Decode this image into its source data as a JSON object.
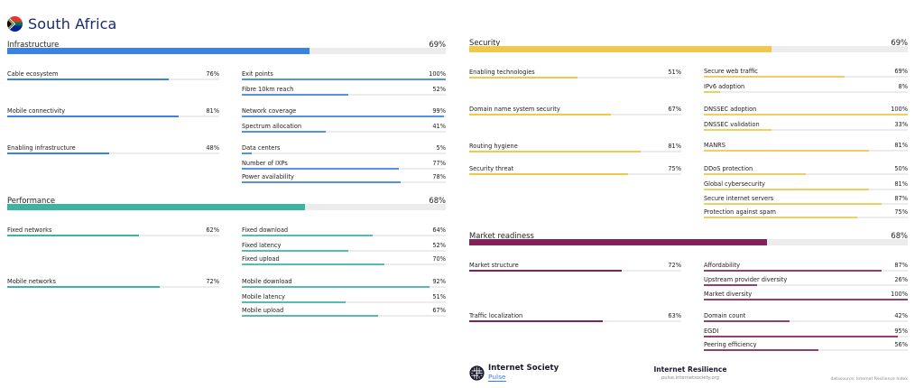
{
  "header": {
    "country": "South Africa",
    "flag_icon": "south-africa-flag-icon"
  },
  "colors": {
    "infrastructure": "#3a82e4",
    "performance": "#3fb3a0",
    "security": "#f0c94b",
    "market_readiness": "#85215a",
    "track": "#ececec"
  },
  "categories": {
    "infrastructure": {
      "label": "Infrastructure",
      "value": "69%",
      "score": 69,
      "groups": [
        {
          "label": "Cable ecosystem",
          "value": "76%",
          "score": 76,
          "indicators": [
            {
              "label": "Exit points",
              "value": "100%",
              "score": 100
            },
            {
              "label": "Fibre 10km reach",
              "value": "52%",
              "score": 52
            }
          ]
        },
        {
          "label": "Mobile connectivity",
          "value": "81%",
          "score": 81,
          "indicators": [
            {
              "label": "Network coverage",
              "value": "99%",
              "score": 99
            },
            {
              "label": "Spectrum allocation",
              "value": "41%",
              "score": 41
            }
          ]
        },
        {
          "label": "Enabling infrastructure",
          "value": "48%",
          "score": 48,
          "indicators": [
            {
              "label": "Data centers",
              "value": "5%",
              "score": 5
            },
            {
              "label": "Number of IXPs",
              "value": "77%",
              "score": 77
            },
            {
              "label": "Power availability",
              "value": "78%",
              "score": 78
            }
          ]
        }
      ]
    },
    "performance": {
      "label": "Performance",
      "value": "68%",
      "score": 68,
      "groups": [
        {
          "label": "Fixed networks",
          "value": "62%",
          "score": 62,
          "indicators": [
            {
              "label": "Fixed download",
              "value": "64%",
              "score": 64
            },
            {
              "label": "Fixed latency",
              "value": "52%",
              "score": 52
            },
            {
              "label": "Fixed upload",
              "value": "70%",
              "score": 70
            }
          ]
        },
        {
          "label": "Mobile networks",
          "value": "72%",
          "score": 72,
          "indicators": [
            {
              "label": "Mobile download",
              "value": "92%",
              "score": 92
            },
            {
              "label": "Mobile latency",
              "value": "51%",
              "score": 51
            },
            {
              "label": "Mobile upload",
              "value": "67%",
              "score": 67
            }
          ]
        }
      ]
    },
    "security": {
      "label": "Security",
      "value": "69%",
      "score": 69,
      "groups": [
        {
          "label": "Enabling technologies",
          "value": "51%",
          "score": 51,
          "indicators": [
            {
              "label": "Secure web traffic",
              "value": "69%",
              "score": 69
            },
            {
              "label": "IPv6 adoption",
              "value": "8%",
              "score": 8
            }
          ]
        },
        {
          "label": "Domain name system security",
          "value": "67%",
          "score": 67,
          "indicators": [
            {
              "label": "DNSSEC adoption",
              "value": "100%",
              "score": 100
            },
            {
              "label": "DNSSEC validation",
              "value": "33%",
              "score": 33
            }
          ]
        },
        {
          "label": "Routing hygiene",
          "value": "81%",
          "score": 81,
          "indicators": [
            {
              "label": "MANRS",
              "value": "81%",
              "score": 81
            }
          ]
        },
        {
          "label": "Security threat",
          "value": "75%",
          "score": 75,
          "indicators": [
            {
              "label": "DDoS protection",
              "value": "50%",
              "score": 50
            },
            {
              "label": "Global cybersecurity",
              "value": "81%",
              "score": 81
            },
            {
              "label": "Secure internet servers",
              "value": "87%",
              "score": 87
            },
            {
              "label": "Protection against spam",
              "value": "75%",
              "score": 75
            }
          ]
        }
      ]
    },
    "market_readiness": {
      "label": "Market readiness",
      "value": "68%",
      "score": 68,
      "groups": [
        {
          "label": "Market structure",
          "value": "72%",
          "score": 72,
          "indicators": [
            {
              "label": "Affordability",
              "value": "87%",
              "score": 87
            },
            {
              "label": "Upstream provider diversity",
              "value": "26%",
              "score": 26
            },
            {
              "label": "Market diversity",
              "value": "100%",
              "score": 100
            }
          ]
        },
        {
          "label": "Traffic localization",
          "value": "63%",
          "score": 63,
          "indicators": [
            {
              "label": "Domain count",
              "value": "42%",
              "score": 42
            },
            {
              "label": "EGDI",
              "value": "95%",
              "score": 95
            },
            {
              "label": "Peering efficiency",
              "value": "56%",
              "score": 56
            }
          ]
        }
      ]
    }
  },
  "footer": {
    "org_name": "Internet Society",
    "product": "Pulse",
    "report_title": "Internet Resilience",
    "url": "pulse.internetsociety.org",
    "datasource": "datasource: Internet Resilience Index",
    "logo_icon": "globe-icon"
  }
}
